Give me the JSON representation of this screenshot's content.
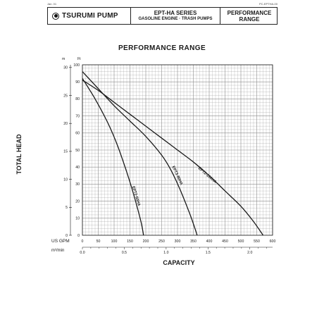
{
  "corner": {
    "left": "Jan. 01",
    "right": "PC-EPTHA-00"
  },
  "header": {
    "brand": "TSURUMI PUMP",
    "series": "EPT-HA SERIES",
    "subtitle": "GASOLINE ENGINE · TRASH PUMPS",
    "section_line1": "PERFORMANCE",
    "section_line2": "RANGE"
  },
  "colors": {
    "line": "#1a1a1a",
    "grid": "#8c8c8c",
    "background": "#ffffff"
  },
  "chart_data": {
    "type": "line",
    "title": "PERFORMANCE RANGE",
    "ylabel": "TOTAL HEAD",
    "xlabel": "CAPACITY",
    "x_unit_label": "US GPM",
    "x_secondary_unit_label": "m³/min",
    "y_unit_label": "Ft",
    "y_secondary_unit_label": "m",
    "xlim": [
      0,
      600
    ],
    "ylim": [
      0,
      100
    ],
    "x_ticks": [
      0,
      50,
      100,
      150,
      200,
      250,
      300,
      350,
      400,
      450,
      500,
      550,
      600
    ],
    "x_tick_labels": [
      "0",
      "50",
      "100",
      "150",
      "200",
      "250",
      "300",
      "350",
      "400",
      "450",
      "500",
      "550",
      "600"
    ],
    "y_ticks": [
      0,
      10,
      20,
      30,
      40,
      50,
      60,
      70,
      80,
      90,
      100
    ],
    "y_tick_labels": [
      "0",
      "10",
      "20",
      "30",
      "40",
      "50",
      "60",
      "70",
      "80",
      "90",
      "100"
    ],
    "x_secondary_ticks": [
      0.0,
      0.5,
      1.0,
      1.5,
      2.0
    ],
    "x_secondary_tick_labels": [
      "0.0",
      "0.5",
      "1.0",
      "1.5",
      "2.0"
    ],
    "y_secondary_ticks": [
      0,
      5,
      10,
      15,
      20,
      25,
      30
    ],
    "y_secondary_tick_labels": [
      "0",
      "5",
      "10",
      "15",
      "20",
      "25",
      "30"
    ],
    "grid": true,
    "series": [
      {
        "name": "EPT2-100HA",
        "x": [
          0,
          50,
          100,
          150,
          200,
          250,
          300,
          350,
          400,
          450,
          500,
          540,
          570
        ],
        "y": [
          91,
          85,
          78,
          71,
          64,
          57,
          50,
          43,
          35,
          26,
          17,
          8,
          0
        ]
      },
      {
        "name": "EPT3-80HA",
        "x": [
          0,
          50,
          100,
          150,
          200,
          250,
          280,
          310,
          340,
          355,
          362
        ],
        "y": [
          96,
          86,
          76,
          67,
          58,
          47,
          38,
          26,
          12,
          4,
          0
        ]
      },
      {
        "name": "EPT2-50HA",
        "x": [
          0,
          40,
          80,
          110,
          140,
          160,
          175,
          186,
          193
        ],
        "y": [
          92,
          80,
          66,
          53,
          37,
          25,
          15,
          7,
          0
        ]
      }
    ]
  }
}
